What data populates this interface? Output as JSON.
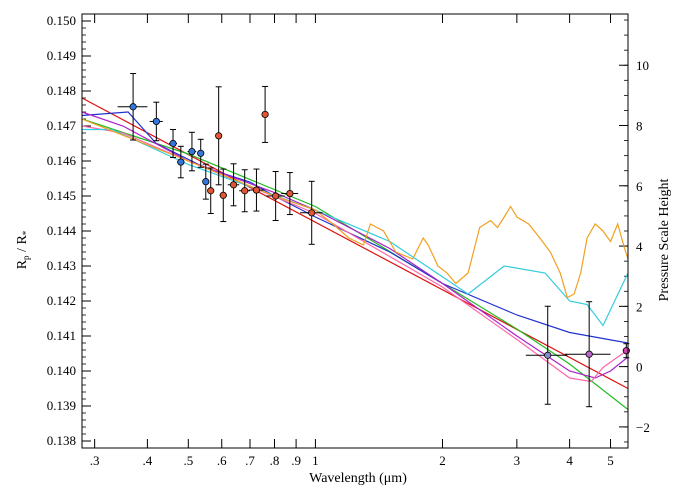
{
  "chart_data": {
    "type": "scatter",
    "xlabel": "Wavelength (μm)",
    "ylabel": "R",
    "ylabel_sub1": "p",
    "ylabel_sep": " / R",
    "ylabel_sub2": "*",
    "ylabel_right": "Pressure Scale Height",
    "x_scale": "log",
    "xlim": [
      0.28,
      5.5
    ],
    "ylim": [
      0.1378,
      0.1502
    ],
    "ylim_right": [
      -2.7,
      11.7
    ],
    "x_ticks": [
      {
        "v": 0.3,
        "label": ".3"
      },
      {
        "v": 0.4,
        "label": ".4"
      },
      {
        "v": 0.5,
        "label": ".5"
      },
      {
        "v": 0.6,
        "label": ".6"
      },
      {
        "v": 0.7,
        "label": ".7"
      },
      {
        "v": 0.8,
        "label": ".8"
      },
      {
        "v": 0.9,
        "label": ".9"
      },
      {
        "v": 1,
        "label": "1"
      },
      {
        "v": 2,
        "label": "2"
      },
      {
        "v": 3,
        "label": "3"
      },
      {
        "v": 4,
        "label": "4"
      },
      {
        "v": 5,
        "label": "5"
      }
    ],
    "y_ticks": [
      {
        "v": 0.138,
        "label": "0.138"
      },
      {
        "v": 0.139,
        "label": "0.139"
      },
      {
        "v": 0.14,
        "label": "0.140"
      },
      {
        "v": 0.141,
        "label": "0.141"
      },
      {
        "v": 0.142,
        "label": "0.142"
      },
      {
        "v": 0.143,
        "label": "0.143"
      },
      {
        "v": 0.144,
        "label": "0.144"
      },
      {
        "v": 0.145,
        "label": "0.145"
      },
      {
        "v": 0.146,
        "label": "0.146"
      },
      {
        "v": 0.147,
        "label": "0.147"
      },
      {
        "v": 0.148,
        "label": "0.148"
      },
      {
        "v": 0.149,
        "label": "0.149"
      },
      {
        "v": 0.15,
        "label": "0.150"
      }
    ],
    "y_right_ticks": [
      {
        "v": -2,
        "label": "−2"
      },
      {
        "v": 0,
        "label": "0"
      },
      {
        "v": 2,
        "label": "2"
      },
      {
        "v": 4,
        "label": "4"
      },
      {
        "v": 6,
        "label": "6"
      },
      {
        "v": 8,
        "label": "8"
      },
      {
        "v": 10,
        "label": "10"
      }
    ],
    "models": [
      {
        "color": "#dd1111",
        "points": [
          [
            0.28,
            0.1478
          ],
          [
            5.5,
            0.1395
          ]
        ]
      },
      {
        "color": "#22bb22",
        "points": [
          [
            0.28,
            0.1472
          ],
          [
            0.5,
            0.1462
          ],
          [
            1,
            0.1447
          ],
          [
            2,
            0.1425
          ],
          [
            3,
            0.1412
          ],
          [
            4,
            0.1402
          ],
          [
            5.5,
            0.1389
          ]
        ]
      },
      {
        "color": "#2233cc",
        "points": [
          [
            0.28,
            0.1473
          ],
          [
            0.36,
            0.1474
          ],
          [
            0.42,
            0.1465
          ],
          [
            0.55,
            0.1458
          ],
          [
            0.7,
            0.1454
          ],
          [
            0.8,
            0.145
          ],
          [
            1,
            0.1444
          ],
          [
            1.5,
            0.1434
          ],
          [
            2,
            0.1425
          ],
          [
            3,
            0.1416
          ],
          [
            4,
            0.1411
          ],
          [
            5.5,
            0.1408
          ]
        ]
      },
      {
        "color": "#aa22cc",
        "points": [
          [
            0.28,
            0.1474
          ],
          [
            0.35,
            0.147
          ],
          [
            0.5,
            0.146
          ],
          [
            0.8,
            0.1451
          ],
          [
            1,
            0.1446
          ],
          [
            1.5,
            0.1435
          ],
          [
            2,
            0.1425
          ],
          [
            3,
            0.141
          ],
          [
            4,
            0.14
          ],
          [
            4.6,
            0.1398
          ],
          [
            5,
            0.14
          ],
          [
            5.5,
            0.1404
          ]
        ]
      },
      {
        "color": "#ff66aa",
        "points": [
          [
            0.28,
            0.147
          ],
          [
            0.35,
            0.1468
          ],
          [
            0.5,
            0.146
          ],
          [
            1,
            0.1445
          ],
          [
            2,
            0.1424
          ],
          [
            3,
            0.1409
          ],
          [
            4,
            0.1398
          ],
          [
            4.5,
            0.1397
          ],
          [
            4.8,
            0.1401
          ],
          [
            5.2,
            0.1404
          ],
          [
            5.5,
            0.1406
          ]
        ]
      },
      {
        "color": "#33ccdd",
        "points": [
          [
            0.28,
            0.1469
          ],
          [
            0.33,
            0.1469
          ],
          [
            0.5,
            0.1459
          ],
          [
            1,
            0.1446
          ],
          [
            1.5,
            0.1437
          ],
          [
            2.3,
            0.1422
          ],
          [
            2.8,
            0.143
          ],
          [
            3.5,
            0.1428
          ],
          [
            4.0,
            0.142
          ],
          [
            4.4,
            0.1419
          ],
          [
            4.8,
            0.1413
          ],
          [
            5.5,
            0.1428
          ]
        ]
      },
      {
        "color": "#f0a020",
        "points": [
          [
            0.28,
            0.1472
          ],
          [
            0.5,
            0.146
          ],
          [
            0.8,
            0.145
          ],
          [
            1.0,
            0.1446
          ],
          [
            1.1,
            0.1442
          ],
          [
            1.2,
            0.1438
          ],
          [
            1.3,
            0.1436
          ],
          [
            1.35,
            0.1442
          ],
          [
            1.45,
            0.144
          ],
          [
            1.55,
            0.1434
          ],
          [
            1.7,
            0.1432
          ],
          [
            1.8,
            0.1438
          ],
          [
            1.85,
            0.1436
          ],
          [
            1.95,
            0.143
          ],
          [
            2.05,
            0.1428
          ],
          [
            2.15,
            0.1425
          ],
          [
            2.3,
            0.1428
          ],
          [
            2.45,
            0.1441
          ],
          [
            2.6,
            0.1443
          ],
          [
            2.7,
            0.1441
          ],
          [
            2.8,
            0.1444
          ],
          [
            2.9,
            0.1447
          ],
          [
            3.0,
            0.1444
          ],
          [
            3.2,
            0.1442
          ],
          [
            3.4,
            0.1438
          ],
          [
            3.6,
            0.1434
          ],
          [
            3.8,
            0.1428
          ],
          [
            3.95,
            0.1421
          ],
          [
            4.1,
            0.1422
          ],
          [
            4.25,
            0.1428
          ],
          [
            4.4,
            0.1438
          ],
          [
            4.6,
            0.1442
          ],
          [
            4.8,
            0.144
          ],
          [
            5.0,
            0.1437
          ],
          [
            5.2,
            0.1442
          ],
          [
            5.4,
            0.1435
          ],
          [
            5.5,
            0.1432
          ]
        ]
      }
    ],
    "observations": [
      {
        "color": "#3377dd",
        "points": [
          {
            "x": 0.37,
            "y": 0.14755,
            "xerr": 0.03,
            "yerr": 0.00095
          },
          {
            "x": 0.42,
            "y": 0.14713,
            "xerr": 0.015,
            "yerr": 0.00055
          },
          {
            "x": 0.46,
            "y": 0.1465,
            "xerr": 0.01,
            "yerr": 0.0004
          },
          {
            "x": 0.48,
            "y": 0.14597,
            "xerr": 0.01,
            "yerr": 0.00045
          },
          {
            "x": 0.51,
            "y": 0.14627,
            "xerr": 0.012,
            "yerr": 0.00055
          },
          {
            "x": 0.535,
            "y": 0.14622,
            "xerr": 0.01,
            "yerr": 0.0004
          },
          {
            "x": 0.55,
            "y": 0.14541,
            "xerr": 0.008,
            "yerr": 0.0005
          }
        ]
      },
      {
        "color": "#e05533",
        "points": [
          {
            "x": 0.565,
            "y": 0.14515,
            "xerr": 0.01,
            "yerr": 0.00065
          },
          {
            "x": 0.59,
            "y": 0.14672,
            "xerr": 0.01,
            "yerr": 0.0014
          },
          {
            "x": 0.605,
            "y": 0.14502,
            "xerr": 0.012,
            "yerr": 0.00075
          },
          {
            "x": 0.64,
            "y": 0.14532,
            "xerr": 0.02,
            "yerr": 0.0006
          },
          {
            "x": 0.68,
            "y": 0.14515,
            "xerr": 0.02,
            "yerr": 0.0006
          },
          {
            "x": 0.725,
            "y": 0.14517,
            "xerr": 0.03,
            "yerr": 0.0006
          },
          {
            "x": 0.76,
            "y": 0.14733,
            "xerr": 0.01,
            "yerr": 0.0008
          },
          {
            "x": 0.805,
            "y": 0.145,
            "xerr": 0.04,
            "yerr": 0.0007
          },
          {
            "x": 0.87,
            "y": 0.14507,
            "xerr": 0.04,
            "yerr": 0.0006
          },
          {
            "x": 0.98,
            "y": 0.14452,
            "xerr": 0.06,
            "yerr": 0.0009
          }
        ]
      },
      {
        "color": "#8888cc",
        "points": [
          {
            "x": 3.55,
            "y": 0.14045,
            "xerr": 0.4,
            "yerr": 0.0014
          }
        ]
      },
      {
        "color": "#bb66cc",
        "points": [
          {
            "x": 4.45,
            "y": 0.14048,
            "xerr": 0.55,
            "yerr": 0.0015
          }
        ]
      },
      {
        "color": "#cc44aa",
        "points": [
          {
            "x": 5.45,
            "y": 0.14058,
            "xerr": 0.05,
            "yerr": 0.0002
          }
        ]
      }
    ]
  }
}
